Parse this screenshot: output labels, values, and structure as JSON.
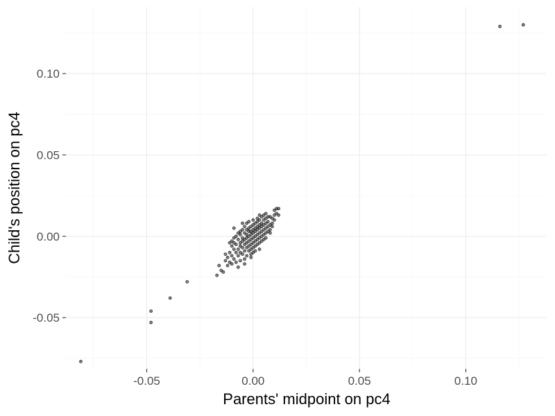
{
  "chart_data": {
    "type": "scatter",
    "title": "",
    "xlabel": "Parents' midpoint on pc4",
    "ylabel": "Child's position on pc4",
    "xlim": [
      -0.088,
      0.138
    ],
    "ylim": [
      -0.0815,
      0.141
    ],
    "x_ticks": [
      -0.05,
      0.0,
      0.05,
      0.1
    ],
    "x_tick_labels": [
      "-0.05",
      "0.00",
      "0.05",
      "0.10"
    ],
    "y_ticks": [
      -0.05,
      0.0,
      0.05,
      0.1
    ],
    "y_tick_labels": [
      "-0.05",
      "0.00",
      "0.05",
      "0.10"
    ],
    "x_minor": [
      -0.075,
      -0.025,
      0.025,
      0.075,
      0.125
    ],
    "y_minor": [
      -0.075,
      -0.025,
      0.025,
      0.075,
      0.125
    ],
    "grid": true,
    "legend": "none",
    "point_color": "#000000",
    "points": [
      [
        -0.081,
        -0.077
      ],
      [
        -0.048,
        -0.046
      ],
      [
        -0.048,
        -0.053
      ],
      [
        -0.039,
        -0.038
      ],
      [
        -0.031,
        -0.028
      ],
      [
        0.116,
        0.129
      ],
      [
        0.127,
        0.13
      ],
      [
        -0.017,
        -0.024
      ],
      [
        -0.016,
        -0.018
      ],
      [
        -0.015,
        -0.021
      ],
      [
        -0.014,
        -0.022
      ],
      [
        -0.013,
        -0.015
      ],
      [
        -0.012,
        -0.013
      ],
      [
        -0.012,
        -0.018
      ],
      [
        -0.011,
        -0.01
      ],
      [
        -0.011,
        -0.016
      ],
      [
        -0.01,
        -0.006
      ],
      [
        -0.01,
        -0.012
      ],
      [
        -0.01,
        -0.003
      ],
      [
        -0.009,
        -0.008
      ],
      [
        -0.009,
        -0.014
      ],
      [
        -0.009,
        -0.004
      ],
      [
        -0.008,
        -0.01
      ],
      [
        -0.008,
        -0.005
      ],
      [
        -0.008,
        -0.016
      ],
      [
        -0.007,
        -0.002
      ],
      [
        -0.007,
        -0.008
      ],
      [
        -0.007,
        -0.012
      ],
      [
        -0.007,
        0.002
      ],
      [
        -0.006,
        -0.006
      ],
      [
        -0.006,
        -0.004
      ],
      [
        -0.006,
        -0.01
      ],
      [
        -0.006,
        0.001
      ],
      [
        -0.005,
        -0.007
      ],
      [
        -0.005,
        -0.003
      ],
      [
        -0.005,
        -0.011
      ],
      [
        -0.005,
        0.004
      ],
      [
        -0.005,
        -0.001
      ],
      [
        -0.004,
        -0.005
      ],
      [
        -0.004,
        -0.002
      ],
      [
        -0.004,
        -0.009
      ],
      [
        -0.004,
        0.002
      ],
      [
        -0.004,
        -0.014
      ],
      [
        -0.004,
        0.006
      ],
      [
        -0.003,
        -0.004
      ],
      [
        -0.003,
        -0.001
      ],
      [
        -0.003,
        -0.007
      ],
      [
        -0.003,
        0.001
      ],
      [
        -0.003,
        -0.012
      ],
      [
        -0.003,
        0.004
      ],
      [
        -0.002,
        -0.003
      ],
      [
        -0.002,
        0.0
      ],
      [
        -0.002,
        -0.006
      ],
      [
        -0.002,
        0.003
      ],
      [
        -0.002,
        -0.009
      ],
      [
        -0.002,
        0.005
      ],
      [
        -0.001,
        -0.002
      ],
      [
        -0.001,
        0.001
      ],
      [
        -0.001,
        -0.005
      ],
      [
        -0.001,
        0.003
      ],
      [
        -0.001,
        -0.008
      ],
      [
        -0.001,
        0.006
      ],
      [
        -0.001,
        -0.011
      ],
      [
        0.0,
        -0.001
      ],
      [
        0.0,
        0.002
      ],
      [
        0.0,
        -0.004
      ],
      [
        0.0,
        0.004
      ],
      [
        0.0,
        -0.007
      ],
      [
        0.0,
        0.007
      ],
      [
        0.0,
        -0.01
      ],
      [
        0.001,
        0.0
      ],
      [
        0.001,
        0.003
      ],
      [
        0.001,
        -0.003
      ],
      [
        0.001,
        0.005
      ],
      [
        0.001,
        -0.006
      ],
      [
        0.001,
        0.008
      ],
      [
        0.002,
        0.001
      ],
      [
        0.002,
        0.004
      ],
      [
        0.002,
        -0.002
      ],
      [
        0.002,
        0.006
      ],
      [
        0.002,
        -0.005
      ],
      [
        0.002,
        0.009
      ],
      [
        0.003,
        0.002
      ],
      [
        0.003,
        0.005
      ],
      [
        0.003,
        -0.001
      ],
      [
        0.003,
        0.007
      ],
      [
        0.003,
        -0.004
      ],
      [
        0.003,
        0.01
      ],
      [
        0.004,
        0.003
      ],
      [
        0.004,
        0.006
      ],
      [
        0.004,
        0.0
      ],
      [
        0.004,
        0.008
      ],
      [
        0.004,
        -0.003
      ],
      [
        0.005,
        0.004
      ],
      [
        0.005,
        0.007
      ],
      [
        0.005,
        0.001
      ],
      [
        0.005,
        0.01
      ],
      [
        0.005,
        -0.002
      ],
      [
        0.006,
        0.005
      ],
      [
        0.006,
        0.008
      ],
      [
        0.006,
        0.002
      ],
      [
        0.006,
        0.011
      ],
      [
        0.007,
        0.006
      ],
      [
        0.007,
        0.003
      ],
      [
        0.007,
        0.009
      ],
      [
        0.008,
        0.007
      ],
      [
        0.008,
        0.004
      ],
      [
        0.008,
        0.012
      ],
      [
        0.009,
        0.008
      ],
      [
        0.009,
        0.011
      ],
      [
        0.01,
        0.013
      ],
      [
        0.01,
        0.016
      ],
      [
        0.011,
        0.017
      ],
      [
        0.012,
        0.017
      ],
      [
        0.012,
        0.013
      ],
      [
        -0.011,
        -0.004
      ],
      [
        -0.009,
        0.005
      ],
      [
        -0.006,
        -0.015
      ],
      [
        -0.003,
        0.008
      ],
      [
        0.0,
        0.01
      ],
      [
        0.003,
        -0.008
      ],
      [
        0.006,
        -0.001
      ],
      [
        0.004,
        0.012
      ],
      [
        -0.008,
        0.0
      ],
      [
        -0.007,
        -0.019
      ],
      [
        -0.002,
        0.009
      ],
      [
        0.001,
        -0.009
      ],
      [
        0.008,
        0.002
      ],
      [
        0.009,
        0.006
      ],
      [
        -0.005,
        0.008
      ],
      [
        -0.01,
        -0.017
      ],
      [
        -0.013,
        -0.011
      ],
      [
        0.002,
        0.011
      ],
      [
        0.007,
        0.012
      ],
      [
        0.01,
        0.01
      ],
      [
        -0.004,
        -0.017
      ],
      [
        -0.001,
        -0.013
      ],
      [
        0.005,
        0.013
      ],
      [
        -0.006,
        0.003
      ],
      [
        -0.009,
        -0.001
      ],
      [
        0.003,
        0.013
      ],
      [
        0.006,
        0.014
      ],
      [
        0.011,
        0.014
      ]
    ]
  }
}
